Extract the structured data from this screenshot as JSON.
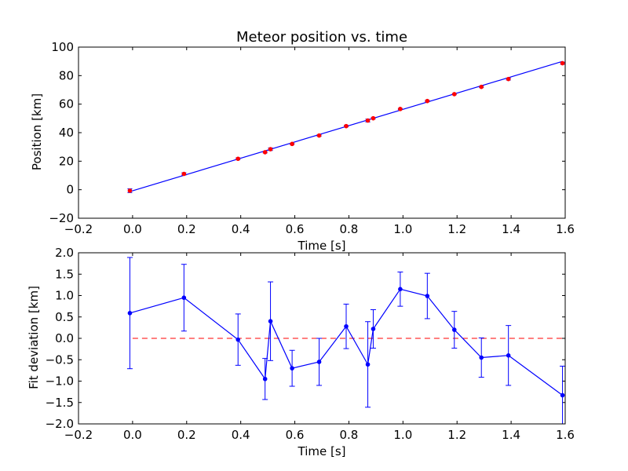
{
  "chart_data": [
    {
      "type": "scatter",
      "title": "Meteor position vs. time",
      "xlabel": "Time [s]",
      "ylabel": "Position [km]",
      "xlim": [
        -0.2,
        1.6
      ],
      "ylim": [
        -20,
        100
      ],
      "xticks": [
        "−0.2",
        "0.0",
        "0.2",
        "0.4",
        "0.6",
        "0.8",
        "1.0",
        "1.2",
        "1.4",
        "1.6"
      ],
      "yticks": [
        "−20",
        "0",
        "20",
        "40",
        "60",
        "80",
        "100"
      ],
      "colors": {
        "points": "#ff0000",
        "errorbars": "#0000ff",
        "fit": "#0000ff"
      },
      "series": [
        {
          "kind": "points_with_errorbars",
          "x": [
            -0.01,
            0.19,
            0.39,
            0.49,
            0.51,
            0.59,
            0.69,
            0.79,
            0.87,
            0.89,
            0.99,
            1.09,
            1.19,
            1.29,
            1.39,
            1.59
          ],
          "y": [
            -0.7,
            11.1,
            21.7,
            26.3,
            28.4,
            32.1,
            38.0,
            44.6,
            48.5,
            50.1,
            56.6,
            62.2,
            67.0,
            72.1,
            77.6,
            88.7
          ],
          "yerr": [
            1.3,
            0.8,
            0.6,
            0.5,
            0.9,
            0.4,
            0.5,
            0.5,
            1.0,
            0.5,
            0.4,
            0.5,
            0.4,
            0.5,
            0.7,
            0.7
          ]
        },
        {
          "kind": "fit_line",
          "x": [
            -0.01,
            1.59
          ],
          "y": [
            -1.3,
            90.0
          ]
        }
      ],
      "grid": false
    },
    {
      "type": "line",
      "xlabel": "Time [s]",
      "ylabel": "Fit deviation [km]",
      "xlim": [
        -0.2,
        1.6
      ],
      "ylim": [
        -2.0,
        2.0
      ],
      "xticks": [
        "−0.2",
        "0.0",
        "0.2",
        "0.4",
        "0.6",
        "0.8",
        "1.0",
        "1.2",
        "1.4",
        "1.6"
      ],
      "yticks": [
        "−2.0",
        "−1.5",
        "−1.0",
        "−0.5",
        "0.0",
        "0.5",
        "1.0",
        "1.5",
        "2.0"
      ],
      "colors": {
        "line": "#0000ff",
        "reference": "#ff0000"
      },
      "series": [
        {
          "kind": "line_with_errorbars",
          "x": [
            -0.01,
            0.19,
            0.39,
            0.49,
            0.51,
            0.59,
            0.69,
            0.79,
            0.87,
            0.89,
            0.99,
            1.09,
            1.19,
            1.29,
            1.39,
            1.59
          ],
          "y": [
            0.59,
            0.95,
            -0.03,
            -0.95,
            0.4,
            -0.7,
            -0.55,
            0.28,
            -0.61,
            0.22,
            1.15,
            0.99,
            0.2,
            -0.45,
            -0.4,
            -1.33
          ],
          "yerr": [
            1.3,
            0.78,
            0.6,
            0.48,
            0.92,
            0.42,
            0.55,
            0.52,
            1.0,
            0.45,
            0.4,
            0.53,
            0.43,
            0.46,
            0.7,
            0.68
          ]
        },
        {
          "kind": "reference_line",
          "style": "dashed",
          "y": 0.0
        }
      ],
      "grid": false
    }
  ]
}
